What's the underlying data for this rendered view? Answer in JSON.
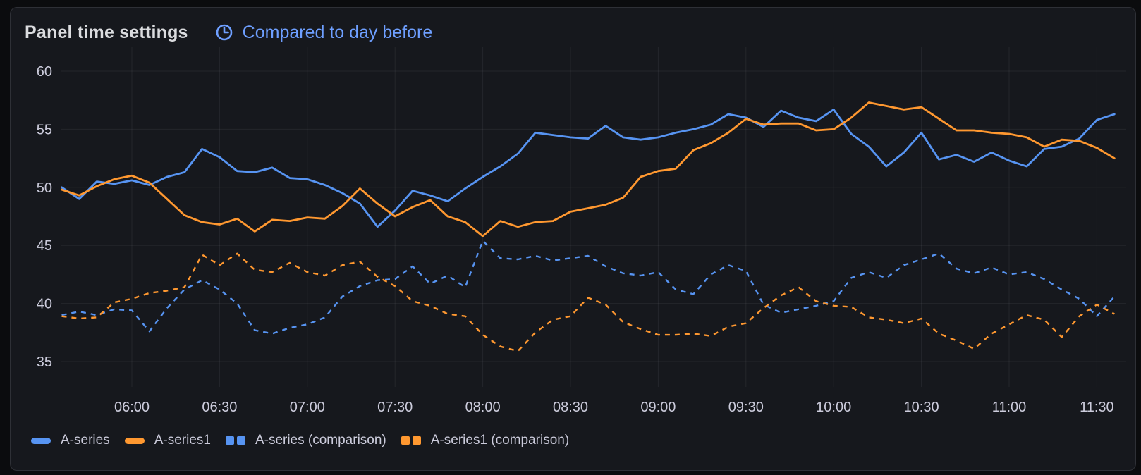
{
  "panel": {
    "title": "Panel time settings",
    "time_shift": {
      "icon": "clock-icon",
      "label": "Compared to day before"
    }
  },
  "colors": {
    "page_bg": "#0b0c0e",
    "panel_bg": "#16181d",
    "panel_border": "#2e3036",
    "title_text": "#dbdcdf",
    "link_blue": "#6e9fff",
    "axis_text": "#ccccdc",
    "gridline": "rgba(204,204,220,0.08)",
    "series_blue": "#5794F2",
    "series_orange": "#FF9830"
  },
  "chart_data": {
    "type": "line",
    "title": "",
    "xlabel": "",
    "ylabel": "",
    "grid": true,
    "legend_position": "bottom",
    "time_start": "05:36",
    "time_step_minutes": 6,
    "x_ticks": [
      "06:00",
      "06:30",
      "07:00",
      "07:30",
      "08:00",
      "08:30",
      "09:00",
      "09:30",
      "10:00",
      "10:30",
      "11:00",
      "11:30"
    ],
    "y_ticks": [
      60,
      55,
      50,
      45,
      40,
      35
    ],
    "ylim": [
      33.9,
      61.3
    ],
    "series": [
      {
        "name": "A-series",
        "color": "#5794F2",
        "style": "solid",
        "values": [
          50.0,
          49.0,
          50.5,
          50.3,
          50.6,
          50.2,
          50.9,
          51.3,
          53.3,
          52.6,
          51.4,
          51.3,
          51.7,
          50.8,
          50.7,
          50.2,
          49.5,
          48.6,
          46.6,
          48.0,
          49.7,
          49.3,
          48.8,
          49.9,
          50.9,
          51.8,
          52.9,
          54.7,
          54.5,
          54.3,
          54.2,
          55.3,
          54.3,
          54.1,
          54.3,
          54.7,
          55.0,
          55.4,
          56.3,
          56.0,
          55.2,
          56.6,
          56.0,
          55.7,
          56.7,
          54.6,
          53.5,
          51.8,
          53.0,
          54.7,
          52.4,
          52.8,
          52.2,
          53.0,
          52.3,
          51.8,
          53.3,
          53.5,
          54.2,
          55.8,
          56.3
        ]
      },
      {
        "name": "A-series1",
        "color": "#FF9830",
        "style": "solid",
        "values": [
          49.8,
          49.3,
          50.1,
          50.7,
          51.0,
          50.4,
          49.0,
          47.6,
          47.0,
          46.8,
          47.3,
          46.2,
          47.2,
          47.1,
          47.4,
          47.3,
          48.4,
          49.9,
          48.6,
          47.5,
          48.3,
          48.9,
          47.5,
          47.0,
          45.8,
          47.1,
          46.6,
          47.0,
          47.1,
          47.9,
          48.2,
          48.5,
          49.1,
          50.9,
          51.4,
          51.6,
          53.2,
          53.8,
          54.7,
          55.9,
          55.4,
          55.5,
          55.5,
          54.9,
          55.0,
          56.0,
          57.3,
          57.0,
          56.7,
          56.9,
          55.9,
          54.9,
          54.9,
          54.7,
          54.6,
          54.3,
          53.5,
          54.1,
          54.0,
          53.4,
          52.5
        ]
      },
      {
        "name": "A-series (comparison)",
        "color": "#5794F2",
        "style": "dashed",
        "values": [
          39.0,
          39.3,
          39.0,
          39.5,
          39.4,
          37.6,
          39.6,
          41.2,
          42.0,
          41.2,
          40.0,
          37.7,
          37.4,
          37.9,
          38.2,
          38.8,
          40.6,
          41.5,
          42.0,
          42.1,
          43.2,
          41.7,
          42.4,
          41.4,
          45.4,
          43.9,
          43.8,
          44.1,
          43.7,
          43.9,
          44.1,
          43.2,
          42.6,
          42.4,
          42.7,
          41.2,
          40.8,
          42.5,
          43.3,
          42.8,
          39.9,
          39.2,
          39.5,
          39.8,
          40.2,
          42.2,
          42.7,
          42.2,
          43.3,
          43.8,
          44.3,
          43.0,
          42.6,
          43.1,
          42.5,
          42.7,
          42.1,
          41.2,
          40.4,
          38.9,
          40.6
        ]
      },
      {
        "name": "A-series1 (comparison)",
        "color": "#FF9830",
        "style": "dashed",
        "values": [
          38.9,
          38.7,
          38.8,
          40.1,
          40.4,
          40.9,
          41.1,
          41.4,
          44.2,
          43.3,
          44.3,
          42.9,
          42.7,
          43.5,
          42.7,
          42.4,
          43.3,
          43.6,
          42.3,
          41.5,
          40.2,
          39.8,
          39.1,
          38.9,
          37.3,
          36.3,
          35.9,
          37.5,
          38.6,
          38.9,
          40.5,
          39.9,
          38.4,
          37.8,
          37.3,
          37.3,
          37.4,
          37.2,
          38.0,
          38.3,
          39.6,
          40.7,
          41.4,
          40.2,
          39.8,
          39.7,
          38.8,
          38.6,
          38.3,
          38.7,
          37.4,
          36.8,
          36.1,
          37.4,
          38.2,
          39.0,
          38.6,
          37.1,
          38.9,
          39.9,
          39.1
        ]
      }
    ]
  }
}
